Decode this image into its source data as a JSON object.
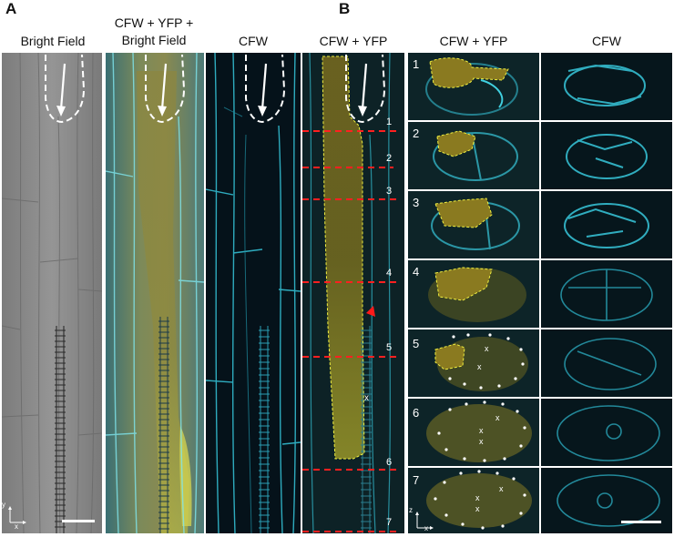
{
  "panel_letters": {
    "a": "A",
    "b": "B"
  },
  "column_titles": {
    "bright_field": "Bright Field",
    "merge_bf_line1": "CFW + YFP +",
    "merge_bf_line2": "Bright Field",
    "cfw": "CFW",
    "cfw_yfp": "CFW + YFP",
    "b_cfw_yfp": "CFW + YFP",
    "b_cfw": "CFW"
  },
  "section_labels": [
    "1",
    "2",
    "3",
    "4",
    "5",
    "6",
    "7"
  ],
  "marks": {
    "x": "x"
  },
  "axes": {
    "y": "y",
    "x": "x",
    "z": "z"
  },
  "colors": {
    "cyan": "#40e0f0",
    "yellow": "#c8c030",
    "red_dash": "#ff2020",
    "red_arrow": "#ff1a1a",
    "background": "#000000"
  }
}
